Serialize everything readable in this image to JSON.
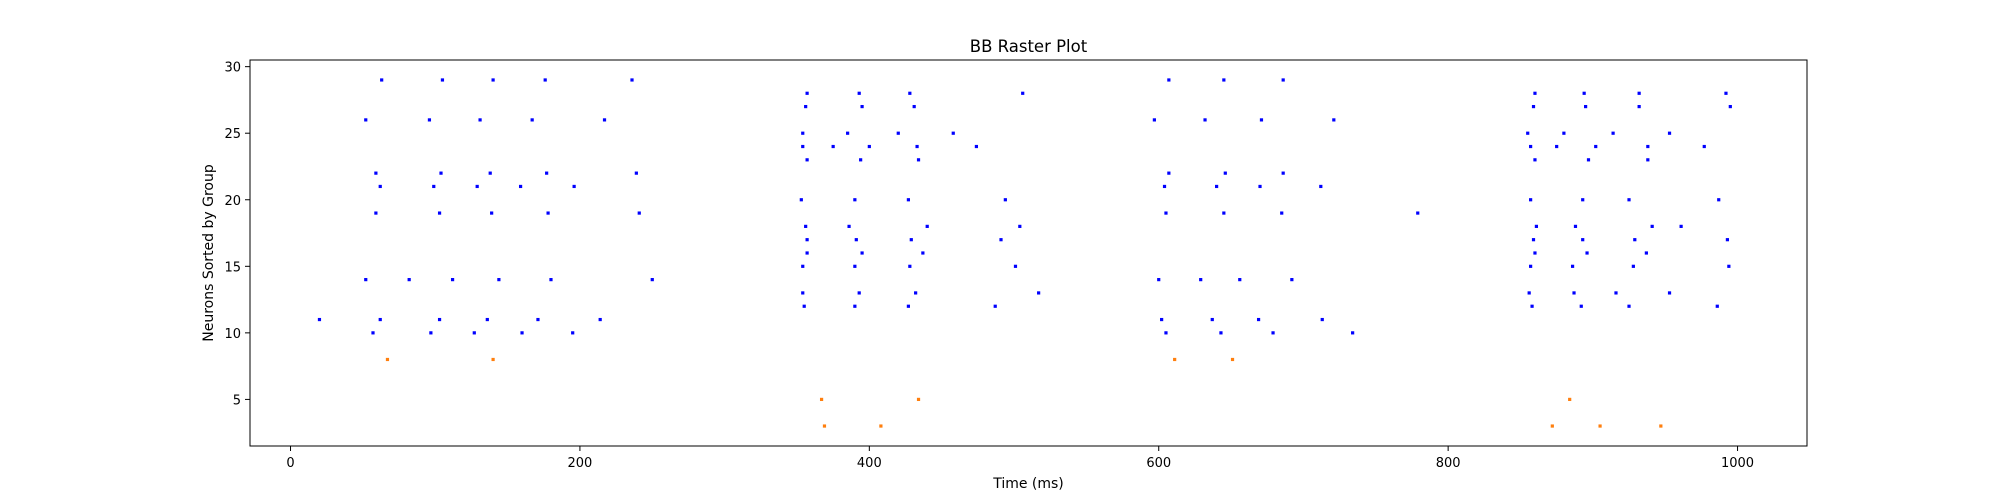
{
  "chart_data": {
    "type": "scatter",
    "title": "BB Raster Plot",
    "xlabel": "Time (ms)",
    "ylabel": "Neurons Sorted by Group",
    "xlim": [
      -28,
      1048
    ],
    "ylim": [
      1.5,
      30.5
    ],
    "xticks": [
      0,
      200,
      400,
      600,
      800,
      1000
    ],
    "yticks": [
      5,
      10,
      15,
      20,
      25,
      30
    ],
    "grid": false,
    "series": [
      {
        "color": "#0000ff",
        "points": [
          [
            63,
            29
          ],
          [
            105,
            29
          ],
          [
            140,
            29
          ],
          [
            176,
            29
          ],
          [
            236,
            29
          ],
          [
            52,
            26
          ],
          [
            96,
            26
          ],
          [
            131,
            26
          ],
          [
            167,
            26
          ],
          [
            217,
            26
          ],
          [
            59,
            22
          ],
          [
            104,
            22
          ],
          [
            138,
            22
          ],
          [
            177,
            22
          ],
          [
            239,
            22
          ],
          [
            62,
            21
          ],
          [
            99,
            21
          ],
          [
            129,
            21
          ],
          [
            159,
            21
          ],
          [
            196,
            21
          ],
          [
            59,
            19
          ],
          [
            103,
            19
          ],
          [
            139,
            19
          ],
          [
            178,
            19
          ],
          [
            241,
            19
          ],
          [
            52,
            14
          ],
          [
            82,
            14
          ],
          [
            112,
            14
          ],
          [
            144,
            14
          ],
          [
            180,
            14
          ],
          [
            250,
            14
          ],
          [
            20,
            11
          ],
          [
            62,
            11
          ],
          [
            103,
            11
          ],
          [
            136,
            11
          ],
          [
            171,
            11
          ],
          [
            214,
            11
          ],
          [
            57,
            10
          ],
          [
            97,
            10
          ],
          [
            127,
            10
          ],
          [
            160,
            10
          ],
          [
            195,
            10
          ],
          [
            357,
            28
          ],
          [
            393,
            28
          ],
          [
            428,
            28
          ],
          [
            506,
            28
          ],
          [
            356,
            27
          ],
          [
            395,
            27
          ],
          [
            431,
            27
          ],
          [
            354,
            25
          ],
          [
            385,
            25
          ],
          [
            420,
            25
          ],
          [
            458,
            25
          ],
          [
            354,
            24
          ],
          [
            375,
            24
          ],
          [
            400,
            24
          ],
          [
            433,
            24
          ],
          [
            474,
            24
          ],
          [
            357,
            23
          ],
          [
            394,
            23
          ],
          [
            434,
            23
          ],
          [
            353,
            20
          ],
          [
            390,
            20
          ],
          [
            427,
            20
          ],
          [
            494,
            20
          ],
          [
            356,
            18
          ],
          [
            386,
            18
          ],
          [
            440,
            18
          ],
          [
            504,
            18
          ],
          [
            357,
            17
          ],
          [
            391,
            17
          ],
          [
            429,
            17
          ],
          [
            491,
            17
          ],
          [
            357,
            16
          ],
          [
            395,
            16
          ],
          [
            437,
            16
          ],
          [
            354,
            15
          ],
          [
            390,
            15
          ],
          [
            428,
            15
          ],
          [
            501,
            15
          ],
          [
            354,
            13
          ],
          [
            393,
            13
          ],
          [
            432,
            13
          ],
          [
            517,
            13
          ],
          [
            355,
            12
          ],
          [
            390,
            12
          ],
          [
            427,
            12
          ],
          [
            487,
            12
          ],
          [
            607,
            29
          ],
          [
            645,
            29
          ],
          [
            686,
            29
          ],
          [
            597,
            26
          ],
          [
            632,
            26
          ],
          [
            671,
            26
          ],
          [
            721,
            26
          ],
          [
            607,
            22
          ],
          [
            646,
            22
          ],
          [
            686,
            22
          ],
          [
            604,
            21
          ],
          [
            640,
            21
          ],
          [
            670,
            21
          ],
          [
            712,
            21
          ],
          [
            605,
            19
          ],
          [
            645,
            19
          ],
          [
            685,
            19
          ],
          [
            779,
            19
          ],
          [
            600,
            14
          ],
          [
            629,
            14
          ],
          [
            656,
            14
          ],
          [
            692,
            14
          ],
          [
            602,
            11
          ],
          [
            637,
            11
          ],
          [
            669,
            11
          ],
          [
            713,
            11
          ],
          [
            605,
            10
          ],
          [
            643,
            10
          ],
          [
            679,
            10
          ],
          [
            734,
            10
          ],
          [
            860,
            28
          ],
          [
            894,
            28
          ],
          [
            932,
            28
          ],
          [
            992,
            28
          ],
          [
            859,
            27
          ],
          [
            895,
            27
          ],
          [
            932,
            27
          ],
          [
            995,
            27
          ],
          [
            855,
            25
          ],
          [
            880,
            25
          ],
          [
            914,
            25
          ],
          [
            953,
            25
          ],
          [
            857,
            24
          ],
          [
            875,
            24
          ],
          [
            902,
            24
          ],
          [
            938,
            24
          ],
          [
            977,
            24
          ],
          [
            860,
            23
          ],
          [
            897,
            23
          ],
          [
            938,
            23
          ],
          [
            857,
            20
          ],
          [
            893,
            20
          ],
          [
            925,
            20
          ],
          [
            987,
            20
          ],
          [
            861,
            18
          ],
          [
            888,
            18
          ],
          [
            941,
            18
          ],
          [
            961,
            18
          ],
          [
            859,
            17
          ],
          [
            893,
            17
          ],
          [
            929,
            17
          ],
          [
            993,
            17
          ],
          [
            860,
            16
          ],
          [
            896,
            16
          ],
          [
            937,
            16
          ],
          [
            857,
            15
          ],
          [
            886,
            15
          ],
          [
            928,
            15
          ],
          [
            994,
            15
          ],
          [
            856,
            13
          ],
          [
            887,
            13
          ],
          [
            916,
            13
          ],
          [
            953,
            13
          ],
          [
            858,
            12
          ],
          [
            892,
            12
          ],
          [
            925,
            12
          ],
          [
            986,
            12
          ]
        ]
      },
      {
        "color": "#ff7f0e",
        "points": [
          [
            67,
            8
          ],
          [
            140,
            8
          ],
          [
            367,
            5
          ],
          [
            434,
            5
          ],
          [
            369,
            3
          ],
          [
            408,
            3
          ],
          [
            611,
            8
          ],
          [
            651,
            8
          ],
          [
            884,
            5
          ],
          [
            872,
            3
          ],
          [
            905,
            3
          ],
          [
            947,
            3
          ]
        ]
      }
    ]
  }
}
